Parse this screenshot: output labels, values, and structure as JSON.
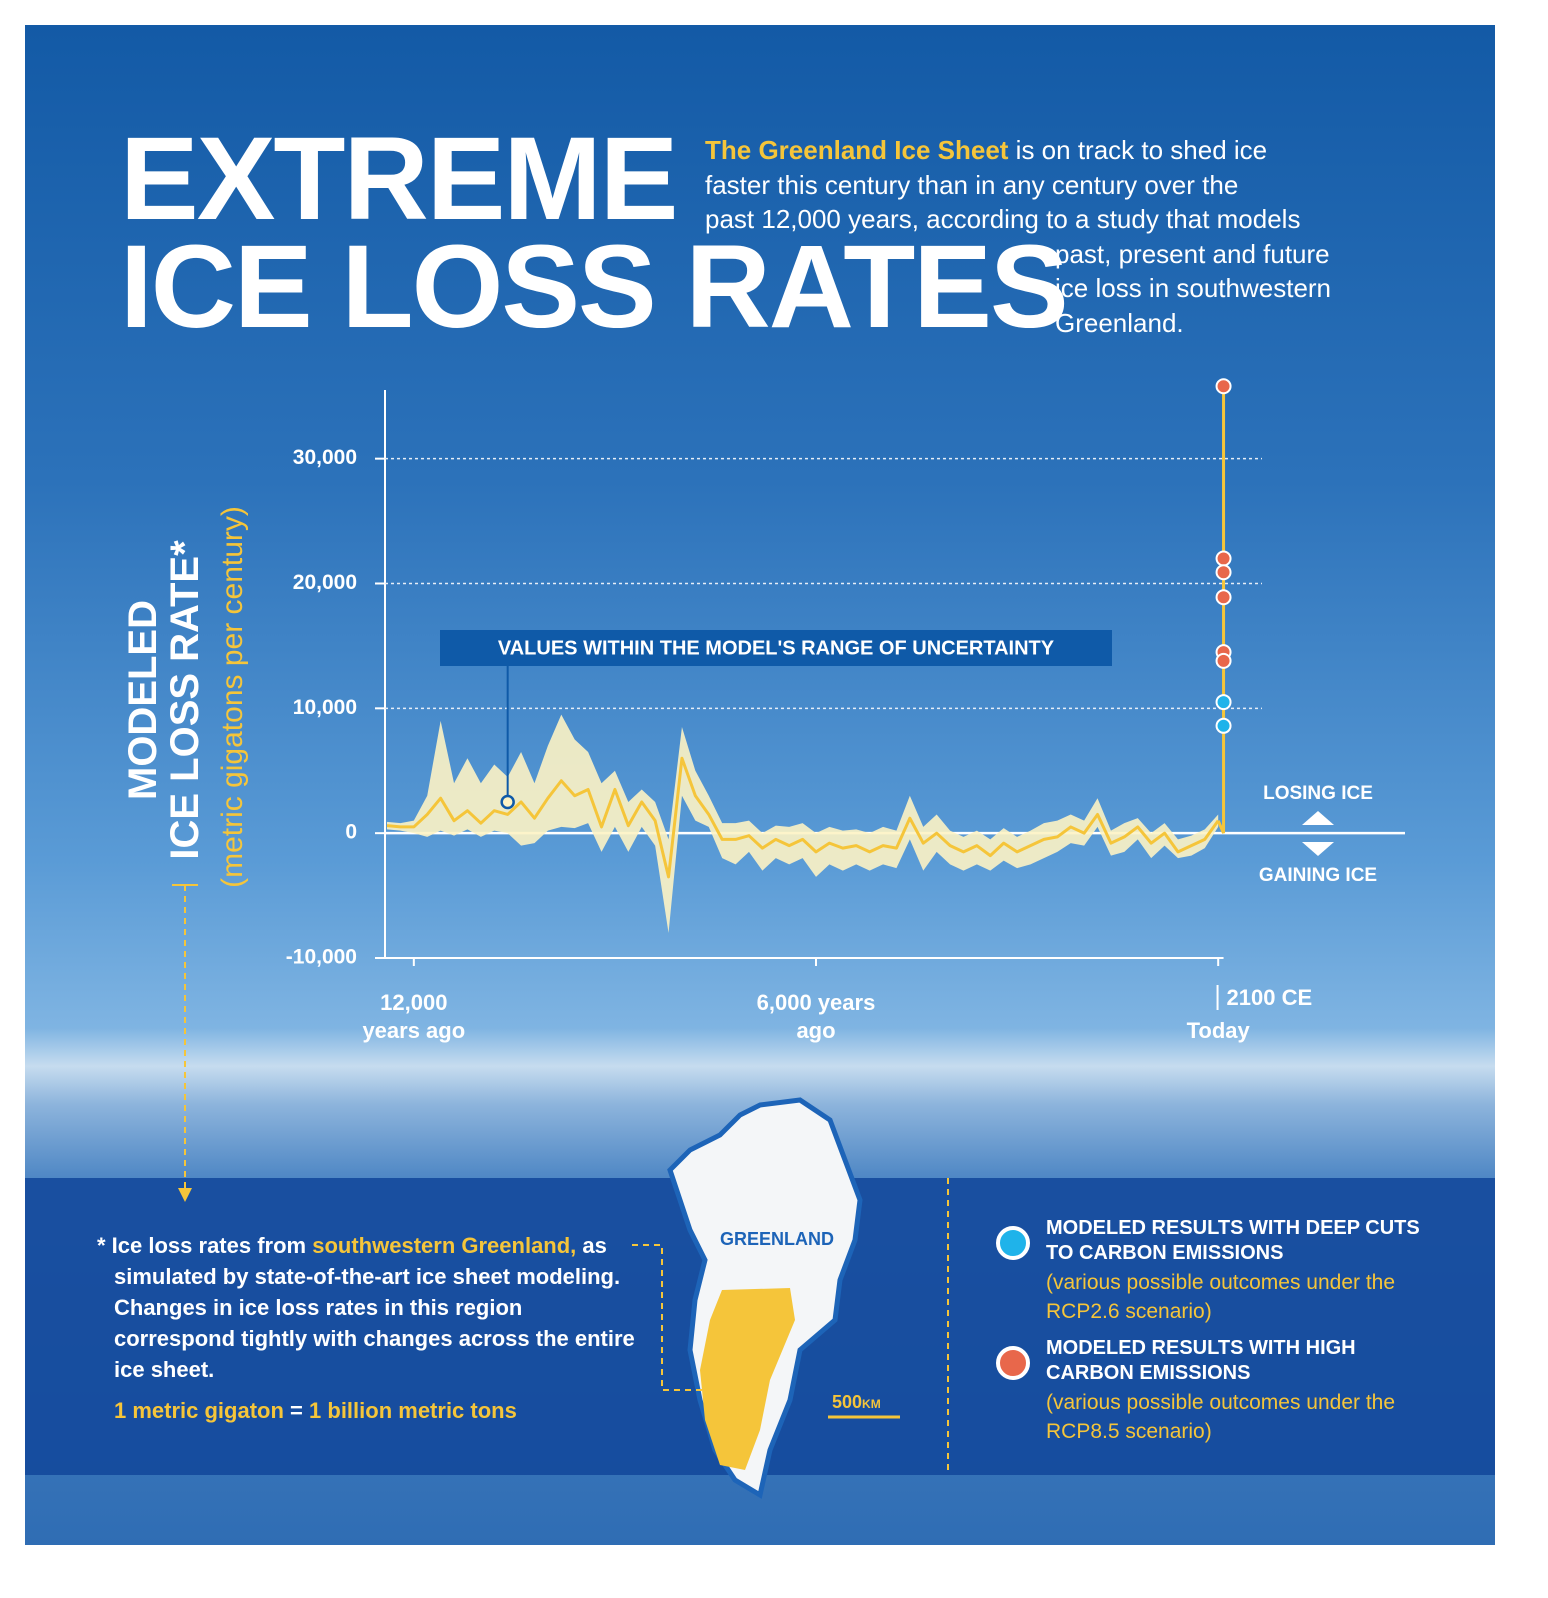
{
  "title_lines": [
    "EXTREME",
    "ICE LOSS RATES"
  ],
  "intro_highlight": "The Greenland Ice Sheet",
  "intro_lines": [
    "is on track to shed ice",
    "faster this century than in any century over the",
    "past 12,000 years, according to a study that models",
    "past, present and future",
    "ice loss in southwestern",
    "Greenland."
  ],
  "chart_data": {
    "type": "line",
    "y_label_lines": [
      "MODELED",
      "ICE LOSS RATE*"
    ],
    "y_sublabel": "(metric gigatons per century)",
    "ylim": [
      -10000,
      35500
    ],
    "yticks": [
      {
        "value": -10000,
        "label": "-10,000"
      },
      0,
      {
        "value": 10000,
        "label": "10,000"
      },
      {
        "value": 20000,
        "label": "20,000"
      },
      {
        "value": 30000,
        "label": "30,000"
      }
    ],
    "xlim": [
      12430,
      -400
    ],
    "xticks": [
      {
        "value": 12000,
        "label": "12,000 years ago"
      },
      {
        "value": 6000,
        "label": "6,000 years ago"
      },
      {
        "value": 0,
        "label": "Today"
      }
    ],
    "x_end_label": "2100 CE",
    "grid": true,
    "line_color": "#f5c53a",
    "band_color": "#fdf3c4",
    "x": [
      12400,
      12200,
      12000,
      11800,
      11600,
      11400,
      11200,
      11000,
      10800,
      10600,
      10400,
      10200,
      10000,
      9800,
      9600,
      9400,
      9200,
      9000,
      8800,
      8600,
      8400,
      8200,
      8000,
      7800,
      7600,
      7400,
      7200,
      7000,
      6800,
      6600,
      6400,
      6200,
      6000,
      5800,
      5600,
      5400,
      5200,
      5000,
      4800,
      4600,
      4400,
      4200,
      4000,
      3800,
      3600,
      3400,
      3200,
      3000,
      2800,
      2600,
      2400,
      2200,
      2000,
      1800,
      1600,
      1400,
      1200,
      1000,
      800,
      600,
      400,
      200,
      0
    ],
    "values": [
      600,
      500,
      500,
      1500,
      2800,
      1000,
      1800,
      800,
      1800,
      1500,
      2500,
      1200,
      2800,
      4200,
      3000,
      3500,
      500,
      3500,
      600,
      2500,
      1000,
      -3500,
      6000,
      3000,
      1500,
      -500,
      -500,
      -200,
      -1200,
      -500,
      -1000,
      -500,
      -1500,
      -800,
      -1200,
      -1000,
      -1500,
      -1000,
      -1200,
      1200,
      -800,
      0,
      -1000,
      -1500,
      -1000,
      -1800,
      -800,
      -1500,
      -1000,
      -500,
      -300,
      500,
      0,
      1500,
      -800,
      -300,
      500,
      -800,
      0,
      -1500,
      -1000,
      -500,
      1000
    ],
    "lower": [
      300,
      200,
      0,
      -300,
      200,
      -200,
      300,
      -300,
      200,
      0,
      -1000,
      -800,
      200,
      500,
      400,
      800,
      -1500,
      500,
      -1500,
      500,
      -1000,
      -8000,
      3000,
      1000,
      500,
      -2000,
      -2500,
      -1500,
      -3000,
      -2000,
      -2500,
      -2000,
      -3500,
      -2500,
      -3000,
      -2500,
      -3000,
      -2500,
      -2800,
      -500,
      -3000,
      -1500,
      -2500,
      -3000,
      -2500,
      -3000,
      -2200,
      -2800,
      -2500,
      -2000,
      -1500,
      -800,
      -1000,
      500,
      -1800,
      -1500,
      -500,
      -2000,
      -1000,
      -2000,
      -1800,
      -1200,
      500
    ],
    "upper": [
      900,
      800,
      1000,
      3000,
      9000,
      4000,
      6000,
      4000,
      5500,
      4500,
      6500,
      4000,
      7000,
      9500,
      7500,
      6500,
      4000,
      5000,
      2500,
      3500,
      2500,
      -500,
      8500,
      5000,
      3000,
      800,
      800,
      1000,
      0,
      600,
      500,
      800,
      0,
      500,
      200,
      300,
      0,
      500,
      200,
      3000,
      500,
      1500,
      200,
      -300,
      200,
      -500,
      400,
      -300,
      200,
      800,
      1000,
      1500,
      1000,
      2800,
      200,
      800,
      1200,
      0,
      800,
      -500,
      -200,
      300,
      1500
    ],
    "annotation": "VALUES WITHIN THE MODEL'S RANGE OF UNCERTAINTY",
    "losing_label": "LOSING ICE",
    "gaining_label": "GAINING ICE",
    "projections": {
      "x": -80,
      "series": [
        {
          "name": "MODELED RESULTS WITH DEEP CUTS TO CARBON EMISSIONS",
          "note": "(various possible outcomes under the RCP2.6 scenario)",
          "color": "#1fb3ea",
          "values": [
            10500,
            8600
          ]
        },
        {
          "name": "MODELED RESULTS WITH HIGH CARBON EMISSIONS",
          "note": "(various possible outcomes under the RCP8.5 scenario)",
          "color": "#e8674b",
          "values": [
            35800,
            22000,
            20900,
            18900,
            14500,
            13800
          ]
        }
      ]
    }
  },
  "footnote": {
    "prefix": "* Ice loss rates from",
    "highlight": "southwestern Greenland,",
    "text": "as simulated by state-of-the-art ice sheet modeling. Changes in ice loss rates in this region correspond tightly with changes across the entire ice sheet."
  },
  "unit_note": {
    "left": "1 metric gigaton",
    "eq": "=",
    "right": "1 billion metric tons"
  },
  "map": {
    "label": "GREENLAND",
    "scale": "500",
    "scale_unit": "KM"
  }
}
